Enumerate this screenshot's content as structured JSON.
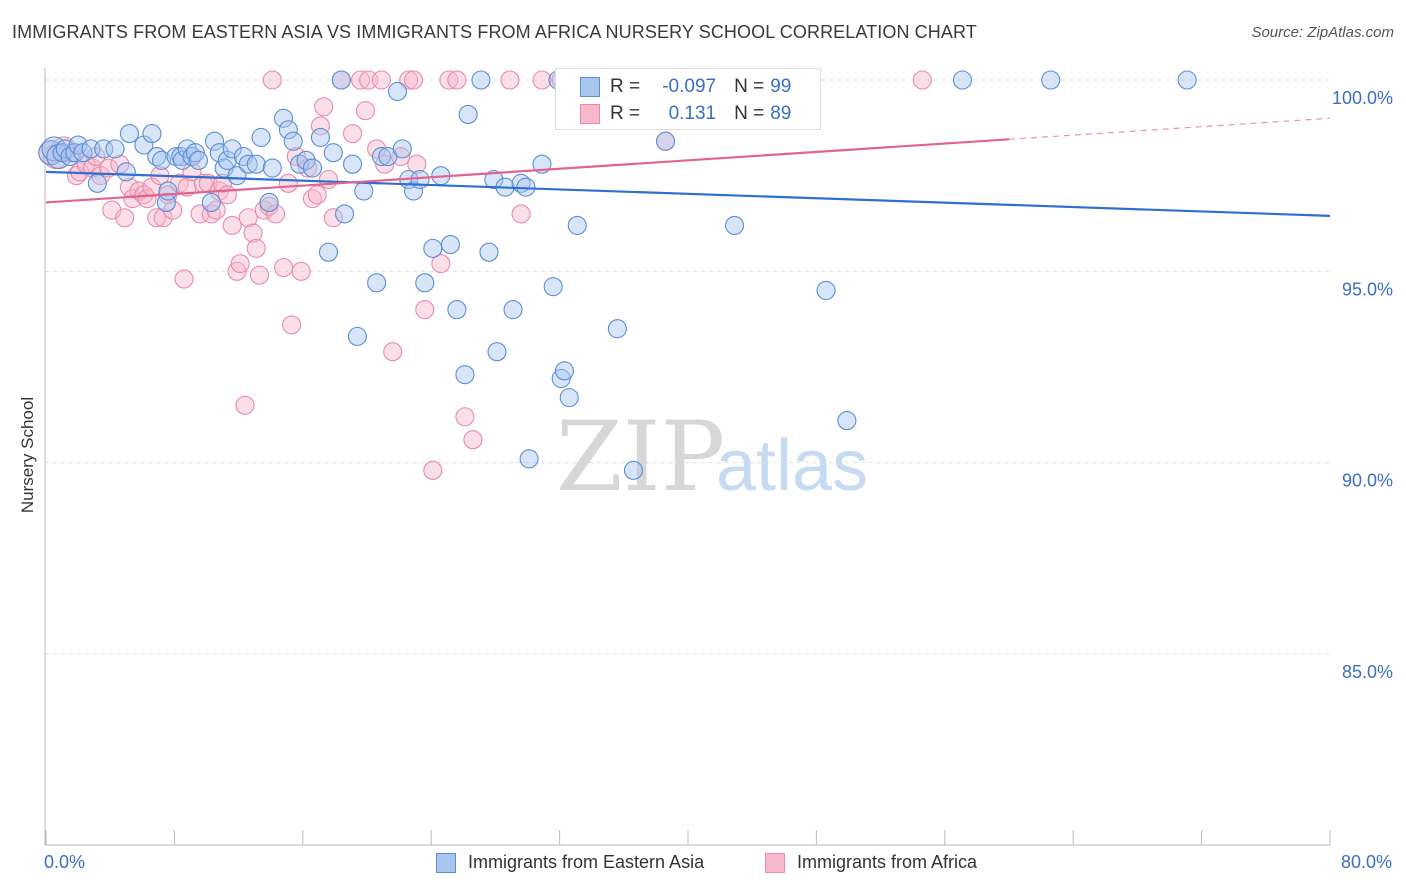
{
  "header": {
    "title": "IMMIGRANTS FROM EASTERN ASIA VS IMMIGRANTS FROM AFRICA NURSERY SCHOOL CORRELATION CHART",
    "source": "Source: ZipAtlas.com"
  },
  "watermark": {
    "zip": "ZIP",
    "atlas": "atlas"
  },
  "stats": {
    "rows": [
      {
        "r_label": "R =",
        "r_value": "-0.097",
        "n_label": "N =",
        "n_value": "99"
      },
      {
        "r_label": "R =",
        "r_value": "0.131",
        "n_label": "N =",
        "n_value": "89"
      }
    ]
  },
  "legend": {
    "items": [
      {
        "label": "Immigrants from Eastern Asia"
      },
      {
        "label": "Immigrants from Africa"
      }
    ]
  },
  "colors": {
    "blue_fill": "#a9c6ef",
    "blue_stroke": "#5b8fd6",
    "blue_line": "#2f6fd0",
    "pink_fill": "#f7b8cb",
    "pink_stroke": "#ea8aa9",
    "pink_line": "#e0648f",
    "tick_text": "#3b6fc6",
    "grid": "#dddddd"
  },
  "chart_data": {
    "type": "scatter",
    "title": "IMMIGRANTS FROM EASTERN ASIA VS IMMIGRANTS FROM AFRICA NURSERY SCHOOL CORRELATION CHART",
    "xlabel": "",
    "ylabel": "Nursery School",
    "xlim": [
      0,
      80
    ],
    "ylim": [
      80.5,
      100.8
    ],
    "x_tick_labels": [
      "0.0%",
      "80.0%"
    ],
    "y_ticks": [
      85,
      90,
      95,
      100
    ],
    "y_tick_labels": [
      "85.0%",
      "90.0%",
      "95.0%",
      "100.0%"
    ],
    "grid": true,
    "legend_position": "bottom",
    "series": [
      {
        "name": "Immigrants from Eastern Asia",
        "color": "#a9c6ef",
        "trend": {
          "x": [
            0,
            80
          ],
          "y": [
            97.6,
            96.45
          ]
        },
        "points": [
          [
            0.3,
            98.1
          ],
          [
            0.5,
            98.2
          ],
          [
            0.8,
            98.0
          ],
          [
            1.0,
            98.1
          ],
          [
            1.2,
            98.2
          ],
          [
            1.5,
            98.0
          ],
          [
            1.8,
            98.1
          ],
          [
            2.0,
            98.3
          ],
          [
            2.3,
            98.1
          ],
          [
            2.8,
            98.2
          ],
          [
            3.2,
            97.3
          ],
          [
            3.6,
            98.2
          ],
          [
            4.3,
            98.2
          ],
          [
            5.0,
            97.6
          ],
          [
            5.2,
            98.6
          ],
          [
            6.1,
            98.3
          ],
          [
            6.6,
            98.6
          ],
          [
            6.9,
            98.0
          ],
          [
            7.2,
            97.9
          ],
          [
            7.5,
            96.8
          ],
          [
            7.6,
            97.1
          ],
          [
            8.1,
            98.0
          ],
          [
            8.4,
            98.0
          ],
          [
            8.5,
            97.9
          ],
          [
            8.8,
            98.2
          ],
          [
            9.1,
            98.0
          ],
          [
            9.3,
            98.1
          ],
          [
            9.5,
            97.9
          ],
          [
            10.3,
            96.8
          ],
          [
            10.5,
            98.4
          ],
          [
            10.8,
            98.1
          ],
          [
            11.1,
            97.7
          ],
          [
            11.3,
            97.9
          ],
          [
            11.6,
            98.2
          ],
          [
            11.9,
            97.5
          ],
          [
            12.3,
            98.0
          ],
          [
            12.6,
            97.8
          ],
          [
            13.1,
            97.8
          ],
          [
            13.4,
            98.5
          ],
          [
            13.9,
            96.8
          ],
          [
            14.1,
            97.7
          ],
          [
            14.8,
            99.0
          ],
          [
            15.1,
            98.7
          ],
          [
            15.4,
            98.4
          ],
          [
            15.8,
            97.8
          ],
          [
            16.2,
            97.9
          ],
          [
            16.6,
            97.7
          ],
          [
            17.1,
            98.5
          ],
          [
            17.6,
            95.5
          ],
          [
            17.9,
            98.1
          ],
          [
            18.4,
            100.0
          ],
          [
            18.6,
            96.5
          ],
          [
            19.1,
            97.8
          ],
          [
            19.4,
            93.3
          ],
          [
            19.8,
            97.1
          ],
          [
            20.6,
            94.7
          ],
          [
            20.9,
            98.0
          ],
          [
            21.3,
            98.0
          ],
          [
            21.9,
            99.7
          ],
          [
            22.2,
            98.2
          ],
          [
            22.6,
            97.4
          ],
          [
            22.9,
            97.1
          ],
          [
            23.3,
            97.4
          ],
          [
            23.6,
            94.7
          ],
          [
            24.1,
            95.6
          ],
          [
            24.6,
            97.5
          ],
          [
            25.2,
            95.7
          ],
          [
            25.6,
            94.0
          ],
          [
            26.1,
            92.3
          ],
          [
            26.3,
            99.1
          ],
          [
            27.1,
            100.0
          ],
          [
            27.6,
            95.5
          ],
          [
            27.9,
            97.4
          ],
          [
            28.1,
            92.9
          ],
          [
            28.6,
            97.2
          ],
          [
            29.1,
            94.0
          ],
          [
            29.6,
            97.3
          ],
          [
            29.9,
            97.2
          ],
          [
            30.1,
            90.1
          ],
          [
            30.9,
            97.8
          ],
          [
            31.6,
            94.6
          ],
          [
            31.9,
            100.0
          ],
          [
            32.1,
            92.2
          ],
          [
            32.3,
            92.4
          ],
          [
            32.6,
            91.7
          ],
          [
            33.1,
            96.2
          ],
          [
            34.1,
            100.0
          ],
          [
            35.6,
            93.5
          ],
          [
            36.1,
            100.0
          ],
          [
            36.6,
            89.8
          ],
          [
            38.6,
            98.4
          ],
          [
            41.6,
            100.0
          ],
          [
            42.9,
            96.2
          ],
          [
            46.1,
            100.0
          ],
          [
            48.6,
            94.5
          ],
          [
            49.9,
            91.1
          ],
          [
            57.1,
            100.0
          ],
          [
            62.6,
            100.0
          ],
          [
            71.1,
            100.0
          ]
        ]
      },
      {
        "name": "Immigrants from Africa",
        "color": "#f7b8cb",
        "trend": {
          "x": [
            0,
            60
          ],
          "y": [
            96.8,
            98.45
          ]
        },
        "points": [
          [
            0.3,
            98.1
          ],
          [
            0.6,
            98.0
          ],
          [
            1.1,
            98.2
          ],
          [
            1.6,
            98.1
          ],
          [
            1.9,
            97.5
          ],
          [
            2.1,
            97.6
          ],
          [
            2.5,
            97.8
          ],
          [
            2.9,
            97.7
          ],
          [
            3.1,
            98.0
          ],
          [
            3.4,
            97.5
          ],
          [
            3.9,
            97.7
          ],
          [
            4.1,
            96.6
          ],
          [
            4.6,
            97.8
          ],
          [
            4.9,
            96.4
          ],
          [
            5.2,
            97.2
          ],
          [
            5.4,
            96.9
          ],
          [
            5.8,
            97.1
          ],
          [
            6.1,
            97.0
          ],
          [
            6.3,
            96.9
          ],
          [
            6.6,
            97.2
          ],
          [
            6.9,
            96.4
          ],
          [
            7.1,
            97.5
          ],
          [
            7.3,
            96.4
          ],
          [
            7.6,
            97.0
          ],
          [
            7.9,
            96.6
          ],
          [
            8.3,
            97.3
          ],
          [
            8.6,
            94.8
          ],
          [
            8.8,
            97.2
          ],
          [
            9.1,
            97.6
          ],
          [
            9.6,
            96.5
          ],
          [
            9.8,
            97.3
          ],
          [
            10.1,
            97.3
          ],
          [
            10.3,
            96.5
          ],
          [
            10.6,
            96.6
          ],
          [
            10.8,
            97.1
          ],
          [
            11.0,
            97.3
          ],
          [
            11.3,
            97.0
          ],
          [
            11.6,
            96.2
          ],
          [
            11.9,
            95.0
          ],
          [
            12.1,
            95.2
          ],
          [
            12.4,
            91.5
          ],
          [
            12.6,
            96.4
          ],
          [
            12.9,
            96.0
          ],
          [
            13.1,
            95.6
          ],
          [
            13.3,
            94.9
          ],
          [
            13.6,
            96.6
          ],
          [
            13.9,
            96.7
          ],
          [
            14.1,
            100.0
          ],
          [
            14.3,
            96.5
          ],
          [
            14.8,
            95.1
          ],
          [
            15.1,
            97.3
          ],
          [
            15.3,
            93.6
          ],
          [
            15.6,
            98.0
          ],
          [
            15.9,
            95.0
          ],
          [
            16.3,
            97.7
          ],
          [
            16.6,
            96.9
          ],
          [
            16.9,
            97.0
          ],
          [
            17.1,
            98.8
          ],
          [
            17.3,
            99.3
          ],
          [
            17.6,
            97.4
          ],
          [
            17.9,
            96.4
          ],
          [
            18.4,
            100.0
          ],
          [
            19.1,
            98.6
          ],
          [
            19.6,
            100.0
          ],
          [
            19.9,
            99.2
          ],
          [
            20.1,
            100.0
          ],
          [
            20.6,
            98.2
          ],
          [
            20.9,
            100.0
          ],
          [
            21.1,
            97.8
          ],
          [
            21.6,
            92.9
          ],
          [
            22.1,
            98.0
          ],
          [
            22.6,
            100.0
          ],
          [
            22.9,
            100.0
          ],
          [
            23.1,
            97.8
          ],
          [
            23.6,
            94.0
          ],
          [
            24.1,
            89.8
          ],
          [
            24.6,
            95.2
          ],
          [
            25.1,
            100.0
          ],
          [
            25.6,
            100.0
          ],
          [
            26.1,
            91.2
          ],
          [
            26.6,
            90.6
          ],
          [
            28.9,
            100.0
          ],
          [
            29.6,
            96.5
          ],
          [
            30.9,
            100.0
          ],
          [
            32.1,
            100.0
          ],
          [
            34.1,
            100.0
          ],
          [
            34.4,
            100.0
          ],
          [
            38.6,
            98.4
          ],
          [
            54.6,
            100.0
          ]
        ]
      }
    ]
  }
}
